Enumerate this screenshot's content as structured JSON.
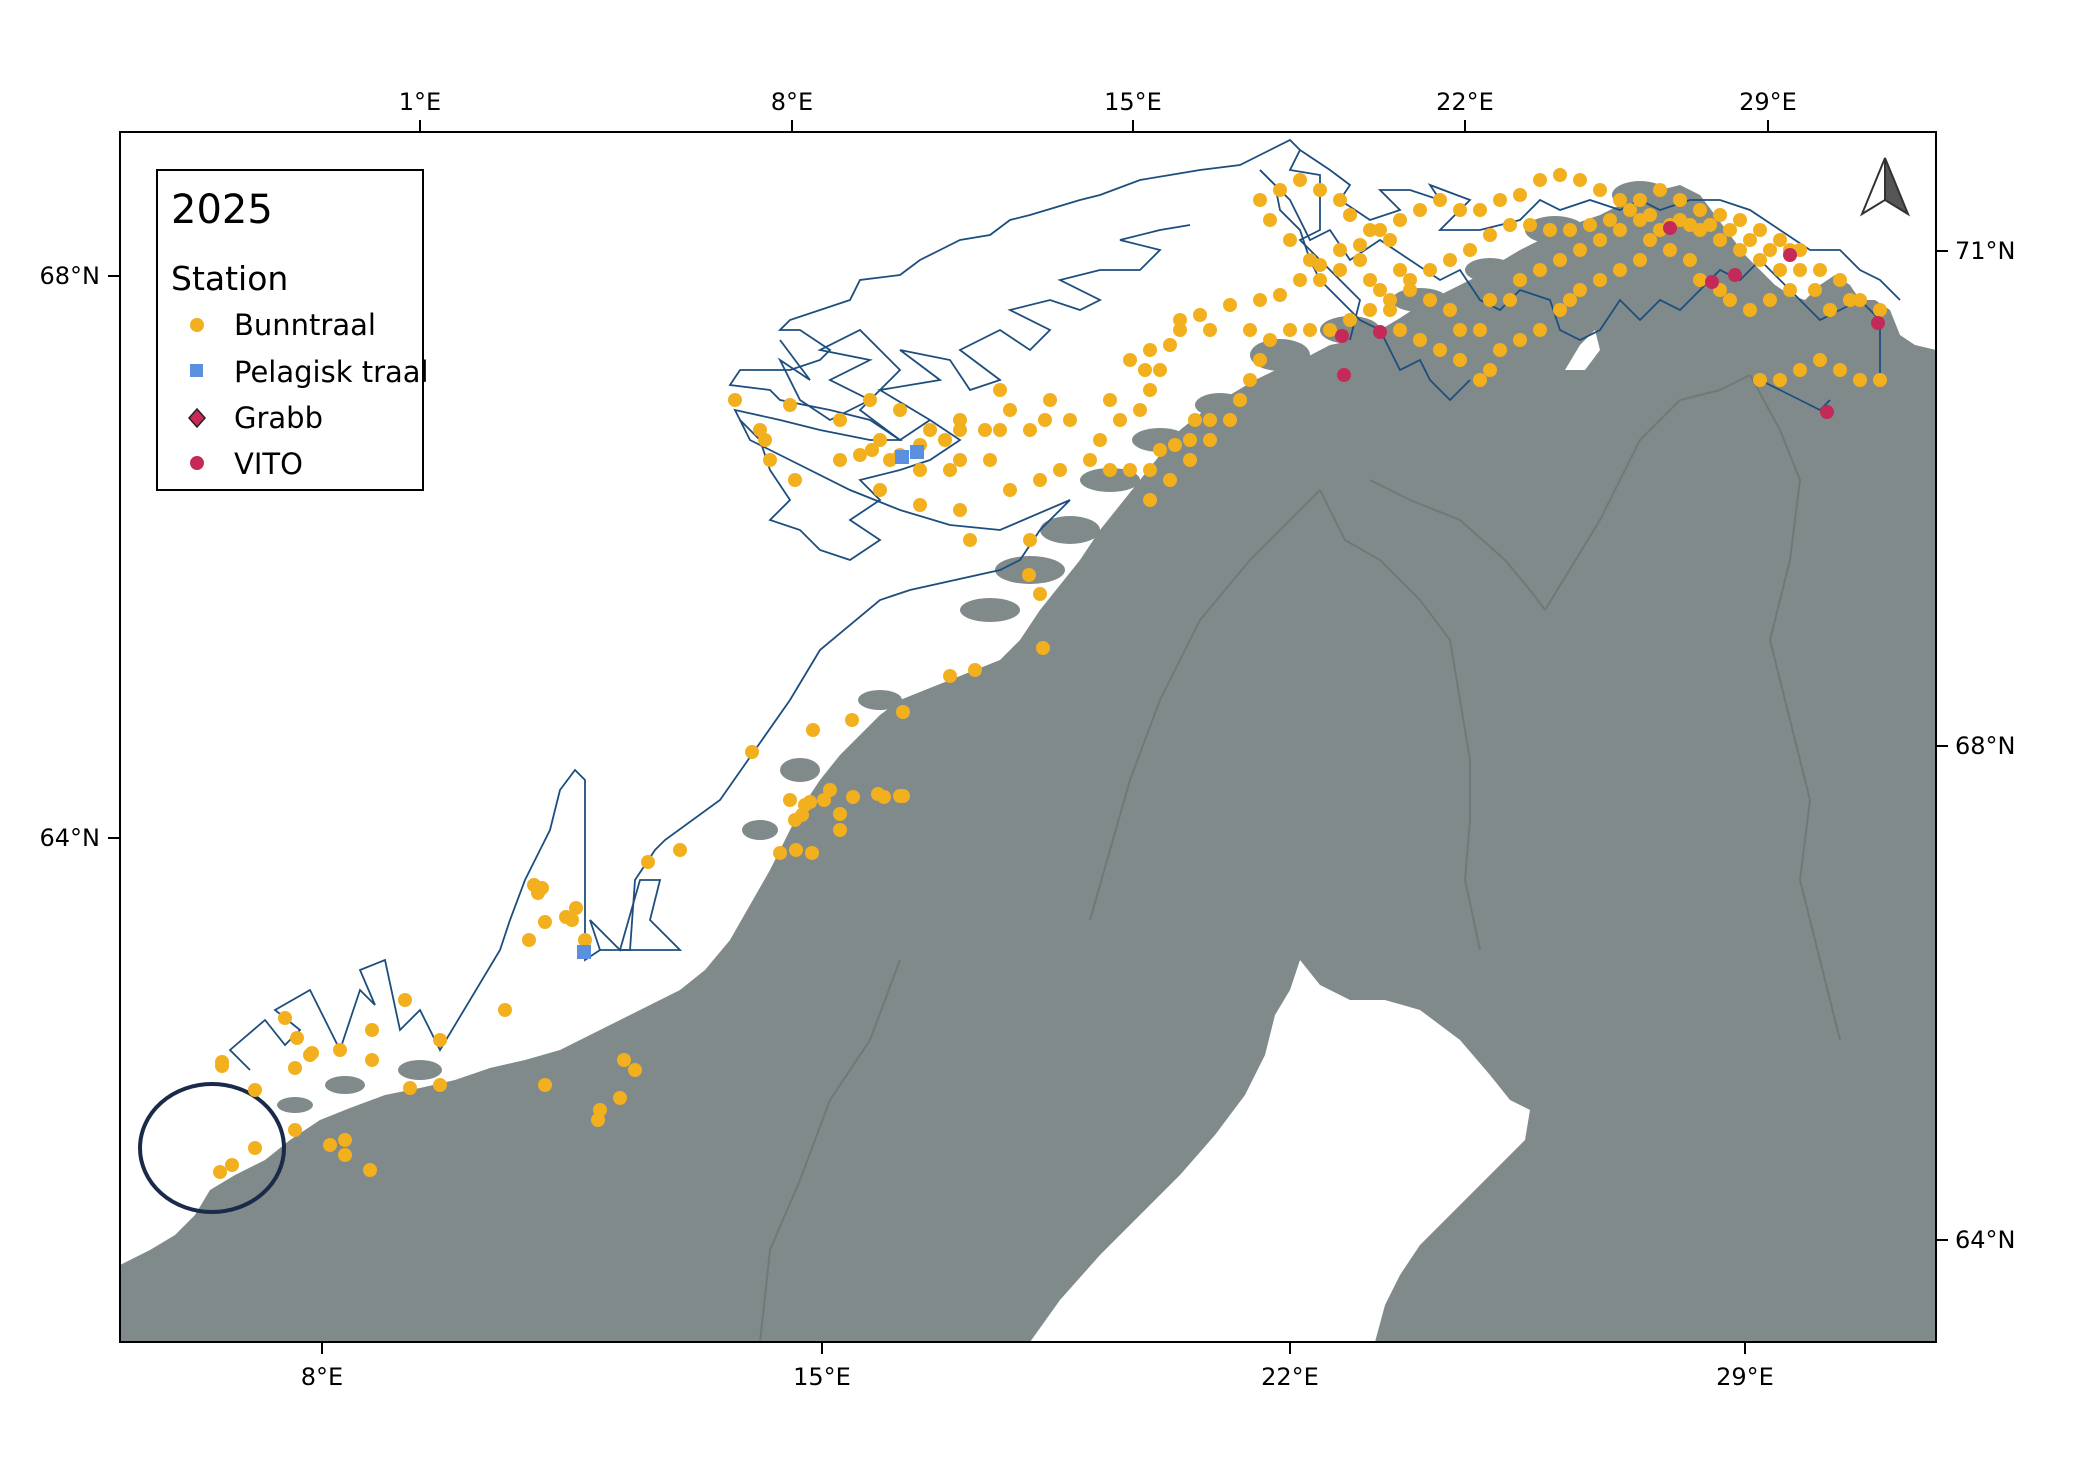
{
  "legend": {
    "title": "2025",
    "heading": "Station",
    "items": [
      {
        "label": "Bunntraal",
        "symbol": "circle",
        "color": "#f2b01e"
      },
      {
        "label": "Pelagisk traal",
        "symbol": "square",
        "color": "#5b8fe0"
      },
      {
        "label": "Grabb",
        "symbol": "diamond",
        "color": "#cc2855"
      },
      {
        "label": "VITO",
        "symbol": "circle",
        "color": "#c32a58"
      }
    ]
  },
  "axes": {
    "top": [
      "1°E",
      "8°E",
      "15°E",
      "22°E",
      "29°E"
    ],
    "bottom": [
      "8°E",
      "15°E",
      "22°E",
      "29°E"
    ],
    "left": [
      "68°N",
      "64°N"
    ],
    "right": [
      "71°N",
      "68°N",
      "64°N"
    ]
  },
  "north_arrow": "north-arrow-icon",
  "colors": {
    "land": "#808a8a",
    "water": "#ffffff",
    "track": "#1d4e7e",
    "border": "#6f7a78",
    "highlight_circle": "#1a2a4a"
  }
}
